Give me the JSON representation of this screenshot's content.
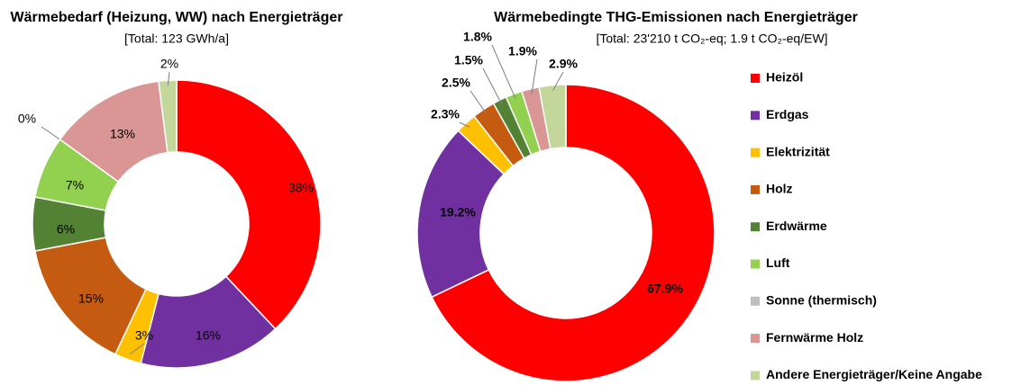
{
  "chart_data": [
    {
      "type": "donut",
      "title": "Wärmebedarf (Heizung, WW) nach Energieträger",
      "subtitle": "[Total: 123 GWh/a]",
      "categories": [
        "Heizöl",
        "Erdgas",
        "Elektrizität",
        "Holz",
        "Erdwärme",
        "Luft",
        "Sonne (thermisch)",
        "Fernwärme Holz",
        "Andere Energieträger/Keine Angabe"
      ],
      "values": [
        38,
        16,
        3,
        15,
        6,
        7,
        0,
        13,
        2
      ],
      "value_labels": [
        "38%",
        "16%",
        "3%",
        "15%",
        "6%",
        "7%",
        "0%",
        "13%",
        "2%"
      ],
      "colors": [
        "#ff0000",
        "#7030a0",
        "#ffc000",
        "#c55a11",
        "#548235",
        "#92d050",
        "#bfbfbf",
        "#d99694",
        "#c4d79b"
      ],
      "legend": false
    },
    {
      "type": "donut",
      "title": "Wärmebedingte THG-Emissionen nach Energieträger",
      "subtitle": "[Total: 23'210 t CO₂-eq; 1.9 t CO₂-eq/EW]",
      "categories": [
        "Heizöl",
        "Erdgas",
        "Elektrizität",
        "Holz",
        "Erdwärme",
        "Luft",
        "Sonne (thermisch)",
        "Fernwärme Holz",
        "Andere Energieträger/Keine Angabe"
      ],
      "values": [
        67.9,
        19.2,
        2.3,
        2.5,
        1.5,
        1.8,
        0,
        1.9,
        2.9
      ],
      "value_labels": [
        "67.9%",
        "19.2%",
        "2.3%",
        "2.5%",
        "1.5%",
        "1.8%",
        null,
        "1.9%",
        "2.9%"
      ],
      "colors": [
        "#ff0000",
        "#7030a0",
        "#ffc000",
        "#c55a11",
        "#548235",
        "#92d050",
        "#bfbfbf",
        "#d99694",
        "#c4d79b"
      ],
      "legend": "right"
    }
  ]
}
